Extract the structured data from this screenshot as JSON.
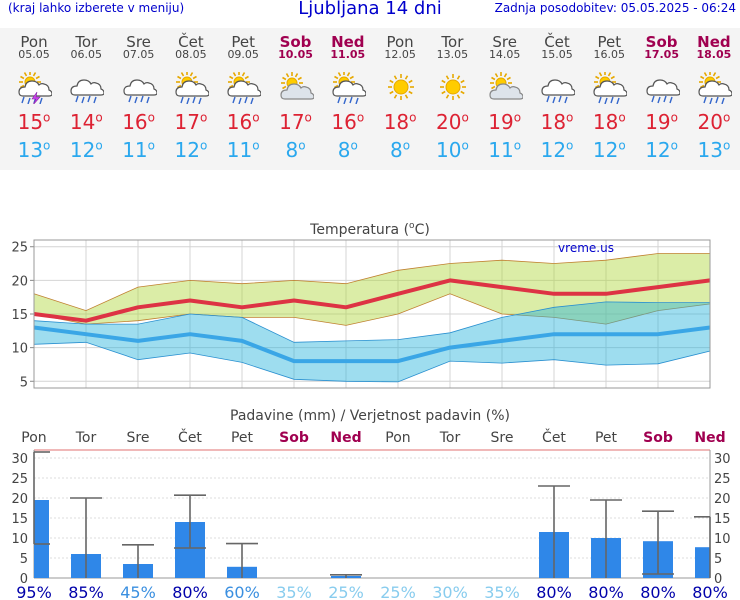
{
  "header": {
    "menu_note": "(kraj lahko izberete v meniju)",
    "title": "Ljubljana 14 dni",
    "updated": "Zadnja posodobitev: 05.05.2025 - 06:24"
  },
  "days": [
    {
      "name": "Pon",
      "date": "05.05",
      "weekend": false,
      "icon": "sun-cloud-thunder-icon",
      "tmax": "15",
      "tmin": "13"
    },
    {
      "name": "Tor",
      "date": "06.05",
      "weekend": false,
      "icon": "cloud-rain-icon",
      "tmax": "14",
      "tmin": "12"
    },
    {
      "name": "Sre",
      "date": "07.05",
      "weekend": false,
      "icon": "cloud-rain-icon",
      "tmax": "16",
      "tmin": "11"
    },
    {
      "name": "Čet",
      "date": "08.05",
      "weekend": false,
      "icon": "sun-cloud-rain-icon",
      "tmax": "17",
      "tmin": "12"
    },
    {
      "name": "Pet",
      "date": "09.05",
      "weekend": false,
      "icon": "sun-cloud-rain-icon",
      "tmax": "16",
      "tmin": "11"
    },
    {
      "name": "Sob",
      "date": "10.05",
      "weekend": true,
      "icon": "sun-cloud-icon",
      "tmax": "17",
      "tmin": "8"
    },
    {
      "name": "Ned",
      "date": "11.05",
      "weekend": true,
      "icon": "sun-cloud-rain-icon",
      "tmax": "16",
      "tmin": "8"
    },
    {
      "name": "Pon",
      "date": "12.05",
      "weekend": false,
      "icon": "sun-icon",
      "tmax": "18",
      "tmin": "8"
    },
    {
      "name": "Tor",
      "date": "13.05",
      "weekend": false,
      "icon": "sun-icon",
      "tmax": "20",
      "tmin": "10"
    },
    {
      "name": "Sre",
      "date": "14.05",
      "weekend": false,
      "icon": "sun-cloud-icon",
      "tmax": "19",
      "tmin": "11"
    },
    {
      "name": "Čet",
      "date": "15.05",
      "weekend": false,
      "icon": "cloud-rain-icon",
      "tmax": "18",
      "tmin": "12"
    },
    {
      "name": "Pet",
      "date": "16.05",
      "weekend": false,
      "icon": "sun-cloud-rain-icon",
      "tmax": "18",
      "tmin": "12"
    },
    {
      "name": "Sob",
      "date": "17.05",
      "weekend": true,
      "icon": "cloud-rain-icon",
      "tmax": "19",
      "tmin": "12"
    },
    {
      "name": "Ned",
      "date": "18.05",
      "weekend": true,
      "icon": "sun-cloud-rain-icon",
      "tmax": "20",
      "tmin": "13"
    }
  ],
  "chart_data": [
    {
      "type": "line",
      "title": "Temperatura (°C)",
      "watermark": "vreme.us",
      "ylim": [
        4,
        26
      ],
      "yticks": [
        5,
        10,
        15,
        20,
        25
      ],
      "grid": true,
      "series": [
        {
          "values": [
            15,
            14,
            16,
            17,
            16,
            17,
            16,
            18,
            20,
            19,
            18,
            18,
            19,
            20
          ],
          "color": "#dd3344"
        },
        {
          "values": [
            13,
            12,
            11,
            12,
            11,
            8,
            8,
            8,
            10,
            11,
            12,
            12,
            12,
            13
          ],
          "color": "#3aa6e6"
        }
      ],
      "max_band_upper": [
        18,
        15.5,
        19,
        20,
        19.5,
        20,
        19.5,
        21.5,
        22.5,
        23,
        22.5,
        23,
        24,
        24
      ],
      "max_band_lower": [
        15,
        13.5,
        14,
        15,
        14.5,
        14.5,
        13.3,
        15,
        18,
        15,
        14.5,
        13.5,
        15.5,
        16.5
      ],
      "min_band_upper": [
        14,
        13.5,
        13.5,
        15,
        14.5,
        10.8,
        11,
        11.2,
        12.2,
        14.5,
        16,
        16.8,
        16.7,
        16.7
      ],
      "min_band_lower": [
        10.5,
        10.8,
        8.2,
        9.2,
        7.8,
        5.3,
        5,
        4.9,
        8,
        7.7,
        8.2,
        7.4,
        7.6,
        9.5
      ]
    },
    {
      "type": "bar",
      "title": "Padavine (mm) / Verjetnost padavin (%)",
      "categories": [
        "Pon",
        "Tor",
        "Sre",
        "Čet",
        "Pet",
        "Sob",
        "Ned",
        "Pon",
        "Tor",
        "Sre",
        "Čet",
        "Pet",
        "Sob",
        "Ned"
      ],
      "weekend": [
        false,
        false,
        false,
        false,
        false,
        true,
        true,
        false,
        false,
        false,
        false,
        false,
        true,
        true
      ],
      "values": [
        19.5,
        6,
        3.5,
        14,
        2.8,
        0,
        0.5,
        0,
        0,
        0,
        11.5,
        10,
        9.2,
        7.7
      ],
      "range_low": [
        8.5,
        0,
        0,
        7.5,
        0,
        0,
        0,
        0,
        0,
        0,
        0,
        0,
        1,
        0
      ],
      "range_high": [
        31.5,
        20,
        8.3,
        20.7,
        8.6,
        0,
        0.8,
        0,
        0,
        0,
        23,
        19.5,
        16.7,
        15.3
      ],
      "probability": [
        "95%",
        "85%",
        "45%",
        "80%",
        "60%",
        "35%",
        "25%",
        "25%",
        "30%",
        "35%",
        "80%",
        "80%",
        "80%",
        "80%"
      ],
      "probability_colors": [
        "#0000aa",
        "#0000aa",
        "#3a8fe0",
        "#0000aa",
        "#3a8fe0",
        "#88ccee",
        "#88ccee",
        "#88ccee",
        "#88ccee",
        "#88ccee",
        "#0000aa",
        "#0000aa",
        "#0000aa",
        "#0000aa"
      ],
      "ylim": [
        0,
        32
      ],
      "yticks": [
        0,
        5,
        10,
        15,
        20,
        25,
        30
      ]
    }
  ]
}
